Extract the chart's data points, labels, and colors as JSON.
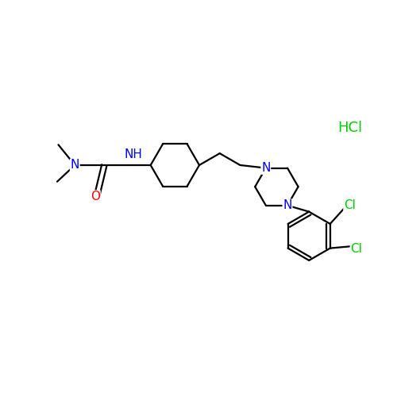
{
  "background_color": "#ffffff",
  "bond_color": "#000000",
  "atom_colors": {
    "N": "#0000ff",
    "O": "#ff0000",
    "Cl": "#00cc00",
    "HCl": "#00cc00",
    "C": "#000000"
  },
  "font_size_atoms": 11,
  "font_size_hcl": 13,
  "lw": 1.6
}
